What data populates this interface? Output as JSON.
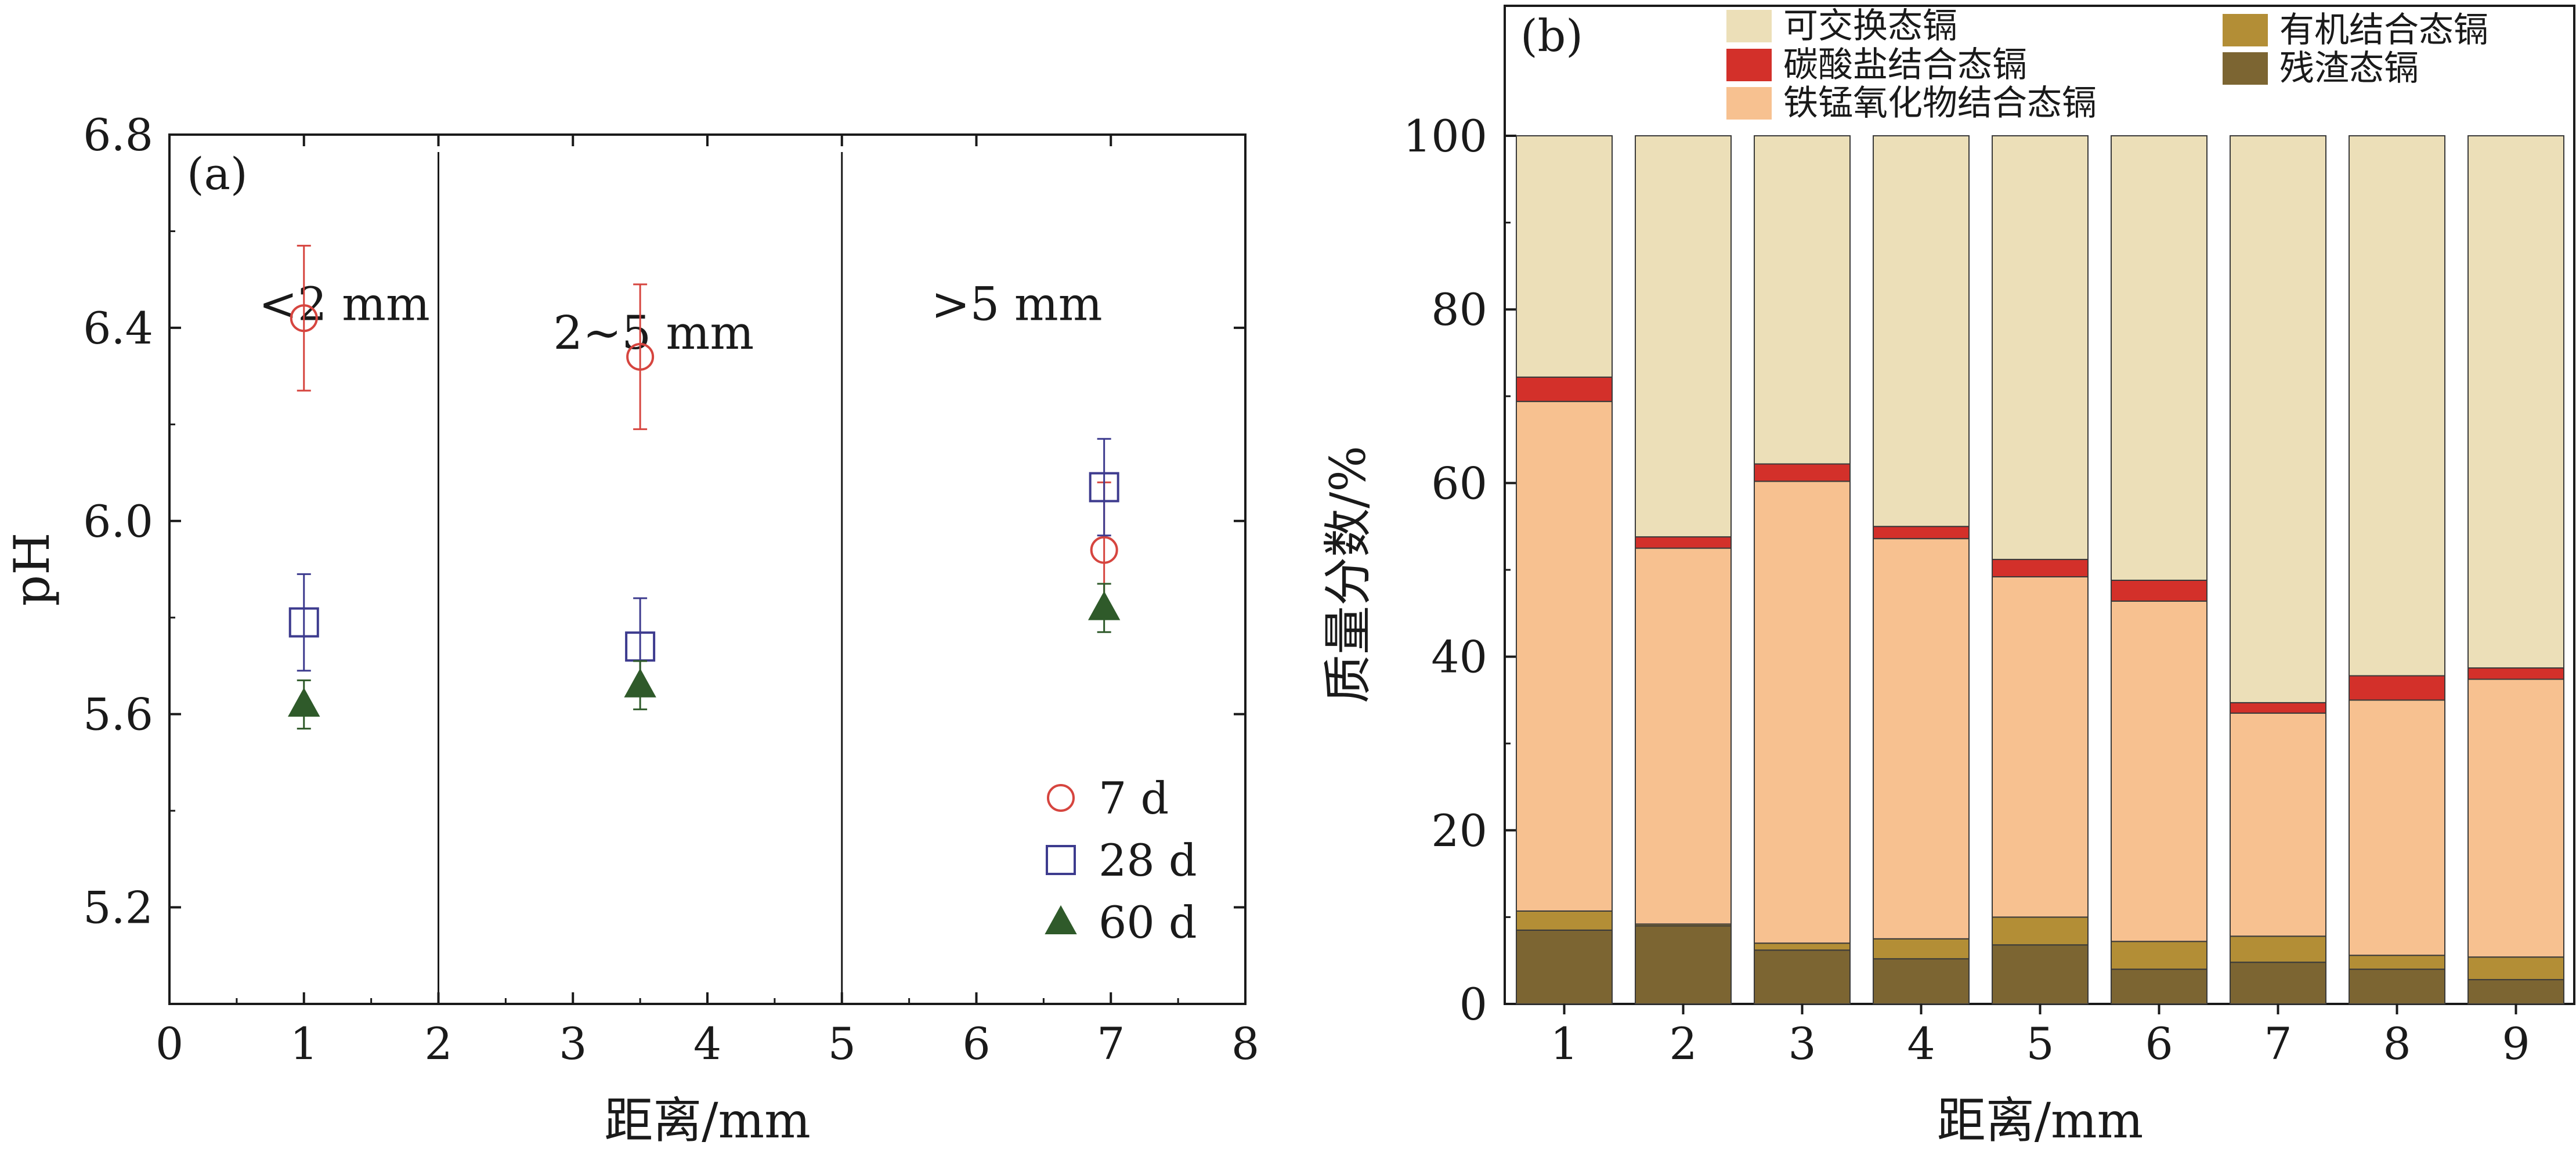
{
  "colors": {
    "axis": "#1a1a1a",
    "t7": "#d6453f",
    "t28": "#3d3b8e",
    "t60": "#2f5a2a",
    "exchangeable": "#ecdfb8",
    "carbonate": "#d3302a",
    "femn_oxide": "#f7c190",
    "organic": "#b38e36",
    "residual": "#7c6532"
  },
  "chart_data": [
    {
      "type": "scatter",
      "panel_label": "(a)",
      "xlabel": "距离/mm",
      "ylabel": "pH",
      "xlim": [
        0,
        8
      ],
      "ylim": [
        5.0,
        6.8
      ],
      "xticks": [
        0,
        1,
        2,
        3,
        4,
        5,
        6,
        7,
        8
      ],
      "yticks": [
        5.2,
        5.6,
        6.0,
        6.4,
        6.8
      ],
      "ytick_labels": [
        "5.2",
        "5.6",
        "6.0",
        "6.4",
        "6.8"
      ],
      "dividers": [
        2,
        5
      ],
      "regions": [
        {
          "label": "<2 mm",
          "x": 1.3,
          "y": 6.45
        },
        {
          "label": "2~5 mm",
          "x": 3.6,
          "y": 6.39
        },
        {
          "label": ">5 mm",
          "x": 6.3,
          "y": 6.45
        }
      ],
      "series": [
        {
          "name": "7 d",
          "marker": "circle-open",
          "color_key": "t7",
          "points": [
            {
              "x": 1.0,
              "y": 6.42,
              "err": 0.15
            },
            {
              "x": 3.5,
              "y": 6.34,
              "err": 0.15
            },
            {
              "x": 6.95,
              "y": 5.94,
              "err": 0.14
            }
          ]
        },
        {
          "name": "28 d",
          "marker": "square-open",
          "color_key": "t28",
          "points": [
            {
              "x": 1.0,
              "y": 5.79,
              "err": 0.1
            },
            {
              "x": 3.5,
              "y": 5.74,
              "err": 0.1
            },
            {
              "x": 6.95,
              "y": 6.07,
              "err": 0.1
            }
          ]
        },
        {
          "name": "60 d",
          "marker": "triangle-filled",
          "color_key": "t60",
          "points": [
            {
              "x": 1.0,
              "y": 5.62,
              "err": 0.05
            },
            {
              "x": 3.5,
              "y": 5.66,
              "err": 0.05
            },
            {
              "x": 6.95,
              "y": 5.82,
              "err": 0.05
            }
          ]
        }
      ],
      "legend_position": "bottom-right"
    },
    {
      "type": "bar",
      "stacked": true,
      "panel_label": "(b)",
      "xlabel": "距离/mm",
      "ylabel": "质量分数/%",
      "categories": [
        "1",
        "2",
        "3",
        "4",
        "5",
        "6",
        "7",
        "8",
        "9"
      ],
      "ylim": [
        0,
        100
      ],
      "yticks": [
        0,
        20,
        40,
        60,
        80,
        100
      ],
      "ytick_labels": [
        "0",
        "20",
        "40",
        "60",
        "80",
        "100"
      ],
      "series": [
        {
          "name": "残渣态镉",
          "color_key": "residual",
          "values": [
            8.5,
            9.0,
            6.2,
            5.2,
            6.8,
            4.0,
            4.8,
            4.0,
            2.8
          ]
        },
        {
          "name": "有机结合态镉",
          "color_key": "organic",
          "values": [
            2.2,
            0.2,
            0.8,
            2.3,
            3.2,
            3.2,
            3.0,
            1.6,
            2.6
          ]
        },
        {
          "name": "铁锰氧化物结合态镉",
          "color_key": "femn_oxide",
          "values": [
            58.7,
            43.3,
            53.2,
            46.1,
            39.2,
            39.2,
            25.7,
            29.4,
            32.0
          ]
        },
        {
          "name": "碳酸盐结合态镉",
          "color_key": "carbonate",
          "values": [
            2.8,
            1.3,
            2.0,
            1.4,
            2.0,
            2.4,
            1.2,
            2.8,
            1.3
          ]
        },
        {
          "name": "可交换态镉",
          "color_key": "exchangeable",
          "values": [
            27.8,
            46.2,
            37.8,
            45.0,
            48.8,
            51.2,
            65.3,
            62.2,
            61.3
          ]
        }
      ],
      "legend_position": "top"
    }
  ]
}
